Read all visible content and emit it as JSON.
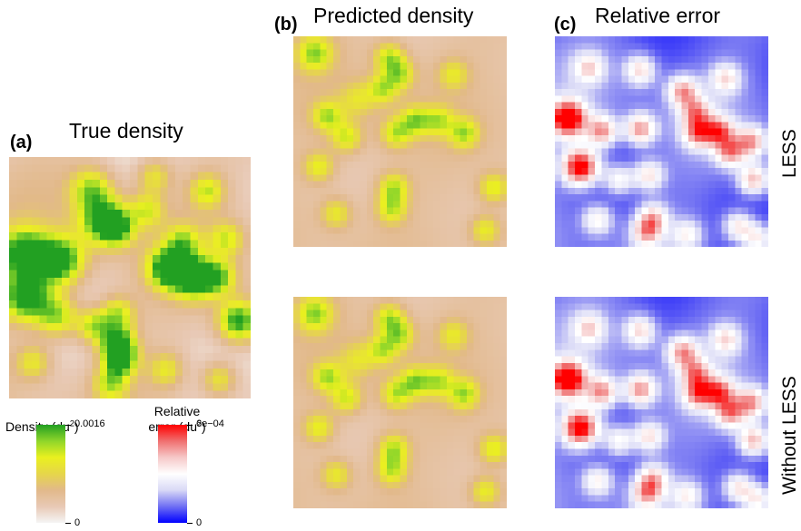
{
  "panels": {
    "a": {
      "letter": "(a)",
      "title": "True density"
    },
    "b": {
      "letter": "(b)",
      "title": "Predicted density"
    },
    "c": {
      "letter": "(c)",
      "title": "Relative error"
    }
  },
  "rows": [
    {
      "label": "LESS"
    },
    {
      "label": "Without LESS"
    }
  ],
  "legends": {
    "density": {
      "title_main": "Density (du",
      "title_exp": "2",
      "title_close": ")",
      "max_label": "0.0016",
      "min_label": "0",
      "colors": [
        "#f5f5f5",
        "#e8c9b5",
        "#e2b98a",
        "#e6d64a",
        "#eaf01f",
        "#8fd62a",
        "#22a022"
      ]
    },
    "error": {
      "title_line1": "Relative",
      "title_main": "error (du",
      "title_exp": "2",
      "title_close": ")",
      "max_label": "6e−04",
      "min_label": "0",
      "colors": [
        "#0000ff",
        "#6f6ff3",
        "#d9d9f6",
        "#ffffff",
        "#f6c8c8",
        "#f07070",
        "#ff0000"
      ]
    }
  },
  "chart_data": [
    {
      "type": "heatmap",
      "title": "True density",
      "panel": "a",
      "value_range": [
        0,
        0.0016
      ],
      "unit": "du^2",
      "colormap": "density",
      "grid": [
        32,
        32
      ]
    },
    {
      "type": "heatmap",
      "title": "Predicted density",
      "panel": "b",
      "row": "LESS",
      "value_range": [
        0,
        0.0016
      ],
      "unit": "du^2",
      "colormap": "density",
      "grid": [
        32,
        32
      ]
    },
    {
      "type": "heatmap",
      "title": "Relative error",
      "panel": "c",
      "row": "LESS",
      "value_range": [
        0,
        0.0006
      ],
      "unit": "du^2",
      "colormap": "error",
      "grid": [
        32,
        32
      ]
    },
    {
      "type": "heatmap",
      "title": "Predicted density",
      "panel": "b",
      "row": "Without LESS",
      "value_range": [
        0,
        0.0016
      ],
      "unit": "du^2",
      "colormap": "density",
      "grid": [
        32,
        32
      ]
    },
    {
      "type": "heatmap",
      "title": "Relative error",
      "panel": "c",
      "row": "Without LESS",
      "value_range": [
        0,
        0.0006
      ],
      "unit": "du^2",
      "colormap": "error",
      "grid": [
        32,
        32
      ]
    }
  ]
}
